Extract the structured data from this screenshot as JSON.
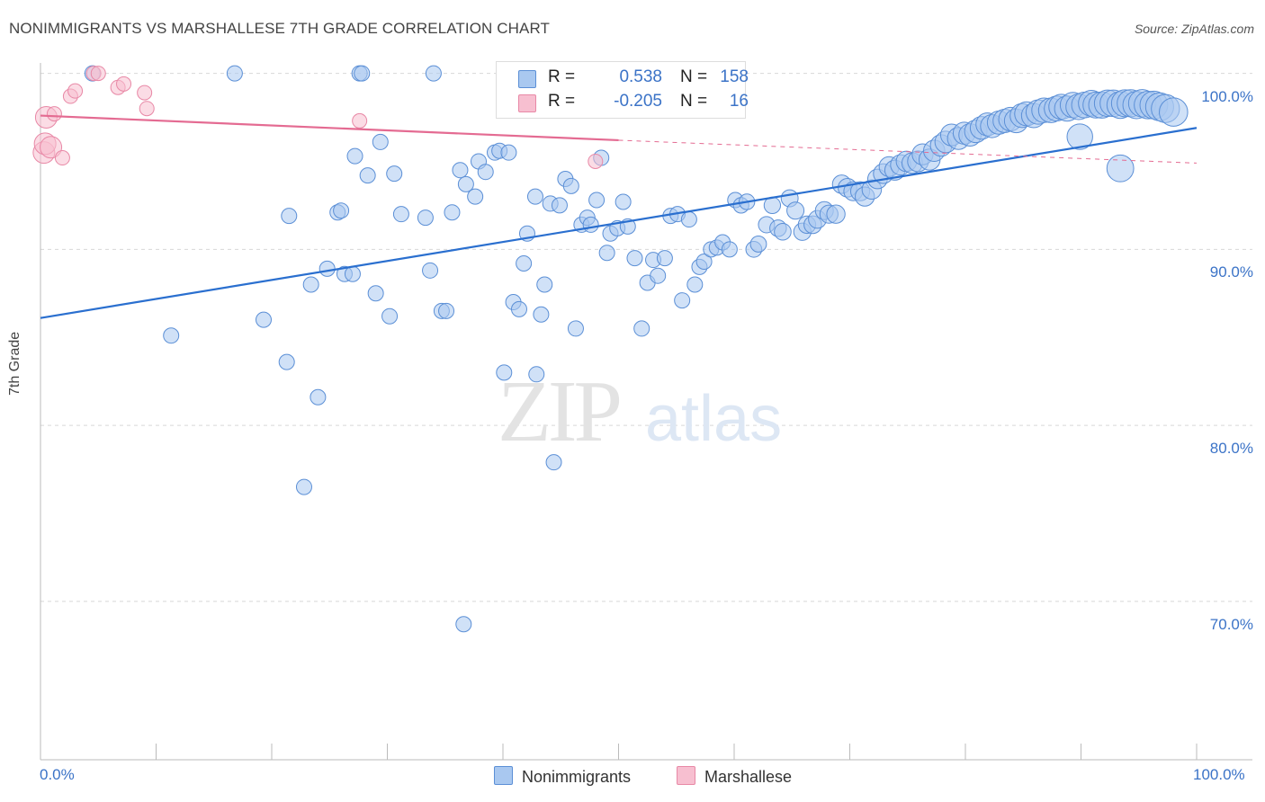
{
  "header": {
    "title": "NONIMMIGRANTS VS MARSHALLESE 7TH GRADE CORRELATION CHART",
    "source": "Source: ZipAtlas.com"
  },
  "watermark": {
    "zip": "ZIP",
    "atlas": "atlas"
  },
  "legend_top": {
    "rows": [
      {
        "r_label": "R =",
        "r_value": "0.538",
        "n_label": "N =",
        "n_value": "158"
      },
      {
        "r_label": "R =",
        "r_value": "-0.205",
        "n_label": "N =",
        "n_value": "16"
      }
    ]
  },
  "legend_bottom": {
    "items": [
      "Nonimmigrants",
      "Marshallese"
    ]
  },
  "colors": {
    "blue_fill": "#a9c8f0",
    "blue_stroke": "#5b8fd6",
    "blue_line": "#2a6fcf",
    "pink_fill": "#f7bfd0",
    "pink_stroke": "#e888a6",
    "pink_line": "#e46b92",
    "grid": "#d8d8d8",
    "axis_label": "#3b73c7"
  },
  "chart_data": {
    "type": "scatter",
    "title": "NONIMMIGRANTS VS MARSHALLESE 7TH GRADE CORRELATION CHART",
    "xlabel": "",
    "ylabel": "7th Grade",
    "x_tick_labels": [
      "0.0%",
      "100.0%"
    ],
    "y_tick_labels": [
      "100.0%",
      "90.0%",
      "80.0%",
      "70.0%"
    ],
    "xlim": [
      0,
      100
    ],
    "ylim": [
      61.0,
      101.0
    ],
    "y_ticks": [
      100,
      90,
      80,
      70
    ],
    "series": [
      {
        "name": "Nonimmigrants",
        "r": 0.538,
        "n": 158,
        "trend": {
          "x": [
            0,
            100
          ],
          "y": [
            86.1,
            96.9
          ]
        },
        "points": [
          [
            4.5,
            100
          ],
          [
            16.8,
            100
          ],
          [
            27.6,
            100
          ],
          [
            27.8,
            100
          ],
          [
            34.0,
            100
          ],
          [
            11.3,
            85.1
          ],
          [
            19.3,
            86.0
          ],
          [
            21.3,
            83.6
          ],
          [
            21.5,
            91.9
          ],
          [
            24.0,
            81.6
          ],
          [
            22.8,
            76.5
          ],
          [
            23.4,
            88.0
          ],
          [
            24.8,
            88.9
          ],
          [
            25.7,
            92.1
          ],
          [
            26.3,
            88.6
          ],
          [
            26.0,
            92.2
          ],
          [
            27.0,
            88.6
          ],
          [
            27.2,
            95.3
          ],
          [
            28.3,
            94.2
          ],
          [
            29.0,
            87.5
          ],
          [
            29.4,
            96.1
          ],
          [
            30.2,
            86.2
          ],
          [
            30.6,
            94.3
          ],
          [
            31.2,
            92.0
          ],
          [
            33.3,
            91.8
          ],
          [
            33.7,
            88.8
          ],
          [
            34.7,
            86.5
          ],
          [
            35.1,
            86.5
          ],
          [
            35.6,
            92.1
          ],
          [
            36.3,
            94.5
          ],
          [
            36.8,
            93.7
          ],
          [
            37.9,
            95.0
          ],
          [
            37.6,
            93.0
          ],
          [
            38.5,
            94.4
          ],
          [
            39.3,
            95.5
          ],
          [
            39.7,
            95.6
          ],
          [
            40.1,
            83.0
          ],
          [
            40.5,
            95.5
          ],
          [
            40.9,
            87.0
          ],
          [
            41.4,
            86.6
          ],
          [
            41.8,
            89.2
          ],
          [
            42.1,
            90.9
          ],
          [
            42.8,
            93.0
          ],
          [
            42.9,
            82.9
          ],
          [
            43.3,
            86.3
          ],
          [
            43.6,
            88.0
          ],
          [
            44.1,
            92.6
          ],
          [
            44.4,
            77.9
          ],
          [
            44.9,
            92.5
          ],
          [
            45.4,
            94.0
          ],
          [
            45.9,
            93.6
          ],
          [
            46.3,
            85.5
          ],
          [
            46.8,
            91.4
          ],
          [
            47.3,
            91.8
          ],
          [
            47.6,
            91.4
          ],
          [
            48.1,
            92.8
          ],
          [
            48.5,
            95.2
          ],
          [
            49.0,
            89.8
          ],
          [
            49.3,
            90.9
          ],
          [
            49.9,
            91.2
          ],
          [
            50.4,
            92.7
          ],
          [
            50.8,
            91.3
          ],
          [
            51.4,
            89.5
          ],
          [
            52.0,
            85.5
          ],
          [
            52.5,
            88.1
          ],
          [
            53.0,
            89.4
          ],
          [
            53.4,
            88.5
          ],
          [
            54.0,
            89.5
          ],
          [
            54.5,
            91.9
          ],
          [
            55.1,
            92.0
          ],
          [
            55.5,
            87.1
          ],
          [
            56.1,
            91.7
          ],
          [
            56.6,
            88.0
          ],
          [
            57.0,
            89.0
          ],
          [
            57.4,
            89.3
          ],
          [
            58.0,
            90.0
          ],
          [
            58.5,
            90.1
          ],
          [
            59.0,
            90.4
          ],
          [
            59.6,
            90.0
          ],
          [
            60.1,
            92.8
          ],
          [
            60.6,
            92.5
          ],
          [
            61.1,
            92.7
          ],
          [
            61.7,
            90.0
          ],
          [
            62.1,
            90.3
          ],
          [
            62.8,
            91.4
          ],
          [
            63.3,
            92.5
          ],
          [
            63.8,
            91.2
          ],
          [
            64.2,
            91.0
          ],
          [
            64.8,
            92.9
          ],
          [
            65.3,
            92.2
          ],
          [
            65.9,
            91.0
          ],
          [
            66.3,
            91.4
          ],
          [
            66.8,
            91.4
          ],
          [
            67.2,
            91.7
          ],
          [
            67.8,
            92.2
          ],
          [
            68.2,
            92.0
          ],
          [
            68.8,
            92.0
          ],
          [
            69.3,
            93.7
          ],
          [
            69.8,
            93.5
          ],
          [
            70.3,
            93.3
          ],
          [
            70.9,
            93.3
          ],
          [
            71.3,
            93.0
          ],
          [
            71.9,
            93.4
          ],
          [
            72.4,
            94.0
          ],
          [
            72.9,
            94.3
          ],
          [
            73.4,
            94.7
          ],
          [
            73.9,
            94.5
          ],
          [
            74.4,
            94.8
          ],
          [
            74.9,
            95.0
          ],
          [
            75.4,
            94.9
          ],
          [
            75.9,
            95.0
          ],
          [
            76.3,
            95.4
          ],
          [
            76.9,
            95.1
          ],
          [
            77.3,
            95.6
          ],
          [
            77.9,
            95.9
          ],
          [
            78.3,
            96.1
          ],
          [
            78.8,
            96.5
          ],
          [
            79.4,
            96.3
          ],
          [
            79.9,
            96.6
          ],
          [
            80.4,
            96.5
          ],
          [
            80.9,
            96.7
          ],
          [
            81.4,
            96.9
          ],
          [
            81.9,
            97.1
          ],
          [
            82.3,
            97.0
          ],
          [
            82.9,
            97.2
          ],
          [
            83.4,
            97.3
          ],
          [
            83.9,
            97.4
          ],
          [
            84.4,
            97.3
          ],
          [
            84.9,
            97.6
          ],
          [
            85.3,
            97.7
          ],
          [
            85.9,
            97.6
          ],
          [
            86.3,
            97.8
          ],
          [
            86.8,
            97.9
          ],
          [
            87.4,
            97.9
          ],
          [
            87.9,
            98.0
          ],
          [
            88.3,
            98.1
          ],
          [
            88.8,
            98.0
          ],
          [
            89.3,
            98.2
          ],
          [
            89.8,
            98.1
          ],
          [
            90.3,
            98.2
          ],
          [
            90.9,
            98.3
          ],
          [
            91.3,
            98.2
          ],
          [
            91.8,
            98.2
          ],
          [
            92.3,
            98.3
          ],
          [
            92.8,
            98.3
          ],
          [
            93.4,
            98.2
          ],
          [
            93.8,
            98.3
          ],
          [
            94.3,
            98.3
          ],
          [
            94.8,
            98.2
          ],
          [
            95.3,
            98.3
          ],
          [
            95.8,
            98.2
          ],
          [
            96.3,
            98.2
          ],
          [
            96.8,
            98.1
          ],
          [
            97.3,
            98.0
          ],
          [
            98.0,
            97.8
          ],
          [
            89.9,
            96.4
          ],
          [
            93.4,
            94.6
          ],
          [
            36.6,
            68.7
          ]
        ]
      },
      {
        "name": "Marshallese",
        "r": -0.205,
        "n": 16,
        "trend": {
          "x": [
            0,
            50
          ],
          "y": [
            97.6,
            96.2
          ]
        },
        "trend_extended": {
          "x": [
            50,
            100
          ],
          "y": [
            96.2,
            94.9
          ]
        },
        "points": [
          [
            0.3,
            95.5
          ],
          [
            0.4,
            96.0
          ],
          [
            0.5,
            97.5
          ],
          [
            0.9,
            95.8
          ],
          [
            1.2,
            97.7
          ],
          [
            1.9,
            95.2
          ],
          [
            2.6,
            98.7
          ],
          [
            3.0,
            99.0
          ],
          [
            4.6,
            100
          ],
          [
            5.0,
            100
          ],
          [
            6.7,
            99.2
          ],
          [
            7.2,
            99.4
          ],
          [
            9.0,
            98.9
          ],
          [
            9.2,
            98.0
          ],
          [
            27.6,
            97.3
          ],
          [
            48.0,
            95.0
          ]
        ]
      }
    ]
  }
}
